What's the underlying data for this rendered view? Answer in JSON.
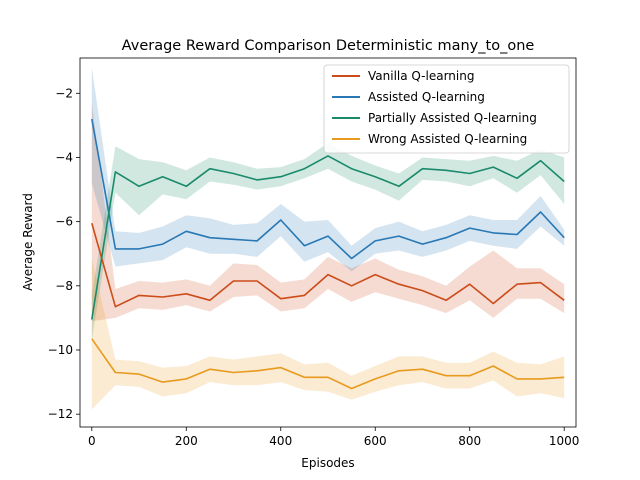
{
  "chart_data": {
    "type": "line",
    "title": "Average Reward Comparison Deterministic many_to_one",
    "xlabel": "Episodes",
    "ylabel": "Average Reward",
    "xlim": [
      -25,
      1025
    ],
    "ylim": [
      -12.4,
      -0.9
    ],
    "xticks": [
      0,
      200,
      400,
      600,
      800,
      1000
    ],
    "yticks": [
      -12,
      -10,
      -8,
      -6,
      -4,
      -2
    ],
    "x": [
      0,
      50,
      100,
      150,
      200,
      250,
      300,
      350,
      400,
      450,
      500,
      550,
      600,
      650,
      700,
      750,
      800,
      850,
      900,
      950,
      1000
    ],
    "grid": false,
    "legend_position": "top-right",
    "series": [
      {
        "name": "Vanilla Q-learning",
        "color": "#cc4c1a",
        "values": [
          -6.05,
          -8.65,
          -8.3,
          -8.35,
          -8.25,
          -8.45,
          -7.85,
          -7.85,
          -8.4,
          -8.3,
          -7.65,
          -8.0,
          -7.65,
          -7.95,
          -8.15,
          -8.45,
          -7.95,
          -8.55,
          -7.95,
          -7.9,
          -8.45
        ],
        "lower": [
          -9.1,
          -9.0,
          -8.7,
          -8.75,
          -8.6,
          -8.8,
          -8.35,
          -8.3,
          -8.8,
          -8.7,
          -8.1,
          -8.5,
          -8.2,
          -8.4,
          -8.6,
          -8.85,
          -8.45,
          -9.0,
          -8.4,
          -8.4,
          -8.85
        ],
        "upper": [
          -2.3,
          -8.1,
          -7.85,
          -7.9,
          -7.8,
          -8.0,
          -7.3,
          -7.35,
          -7.9,
          -7.8,
          -7.1,
          -7.45,
          -7.15,
          -7.5,
          -7.7,
          -8.0,
          -7.4,
          -6.9,
          -7.45,
          -7.45,
          -7.95
        ]
      },
      {
        "name": "Assisted Q-learning",
        "color": "#2878b5",
        "values": [
          -2.8,
          -6.85,
          -6.85,
          -6.7,
          -6.3,
          -6.5,
          -6.55,
          -6.6,
          -5.95,
          -6.75,
          -6.45,
          -7.15,
          -6.6,
          -6.45,
          -6.7,
          -6.5,
          -6.2,
          -6.35,
          -6.4,
          -5.7,
          -6.5
        ],
        "lower": [
          -4.8,
          -7.4,
          -7.3,
          -7.2,
          -6.8,
          -7.0,
          -7.0,
          -7.1,
          -6.45,
          -7.25,
          -6.95,
          -7.55,
          -7.0,
          -6.9,
          -7.1,
          -6.9,
          -6.6,
          -6.75,
          -6.85,
          -6.15,
          -6.75
        ],
        "upper": [
          -1.2,
          -6.3,
          -6.35,
          -6.15,
          -5.8,
          -5.9,
          -6.1,
          -6.05,
          -5.45,
          -6.0,
          -5.95,
          -6.75,
          -6.2,
          -6.0,
          -6.3,
          -6.1,
          -5.8,
          -5.95,
          -5.95,
          -5.2,
          -6.25
        ]
      },
      {
        "name": "Partially Assisted Q-learning",
        "color": "#1a8a6a",
        "values": [
          -9.05,
          -4.45,
          -4.9,
          -4.6,
          -4.9,
          -4.35,
          -4.5,
          -4.7,
          -4.6,
          -4.35,
          -3.95,
          -4.35,
          -4.6,
          -4.9,
          -4.35,
          -4.4,
          -4.5,
          -4.3,
          -4.65,
          -4.1,
          -4.75
        ],
        "lower": [
          -9.7,
          -5.1,
          -5.8,
          -5.15,
          -5.3,
          -4.75,
          -4.85,
          -5.0,
          -4.9,
          -4.65,
          -4.35,
          -4.75,
          -5.0,
          -5.35,
          -4.7,
          -4.75,
          -4.9,
          -4.65,
          -5.1,
          -4.55,
          -5.45
        ],
        "upper": [
          -8.3,
          -3.65,
          -4.05,
          -4.15,
          -4.4,
          -4.0,
          -4.15,
          -4.35,
          -4.3,
          -4.05,
          -3.55,
          -3.95,
          -4.25,
          -4.5,
          -4.0,
          -4.05,
          -4.1,
          -3.95,
          -4.1,
          -3.75,
          -4.0
        ]
      },
      {
        "name": "Wrong Assisted Q-learning",
        "color": "#e89a1e",
        "values": [
          -9.65,
          -10.7,
          -10.75,
          -11.0,
          -10.9,
          -10.6,
          -10.7,
          -10.65,
          -10.55,
          -10.85,
          -10.85,
          -11.2,
          -10.9,
          -10.65,
          -10.6,
          -10.8,
          -10.8,
          -10.5,
          -10.9,
          -10.9,
          -10.85
        ],
        "lower": [
          -11.85,
          -11.1,
          -11.15,
          -11.45,
          -11.35,
          -11.0,
          -11.1,
          -11.1,
          -11.0,
          -11.25,
          -11.3,
          -11.55,
          -11.3,
          -11.1,
          -11.0,
          -11.2,
          -11.2,
          -10.95,
          -11.45,
          -11.35,
          -11.5
        ],
        "upper": [
          -7.15,
          -10.3,
          -10.35,
          -10.55,
          -10.5,
          -10.2,
          -10.3,
          -10.2,
          -10.1,
          -10.45,
          -10.4,
          -10.8,
          -10.5,
          -10.2,
          -10.2,
          -10.4,
          -10.4,
          -10.05,
          -10.4,
          -10.45,
          -10.2
        ]
      }
    ]
  }
}
